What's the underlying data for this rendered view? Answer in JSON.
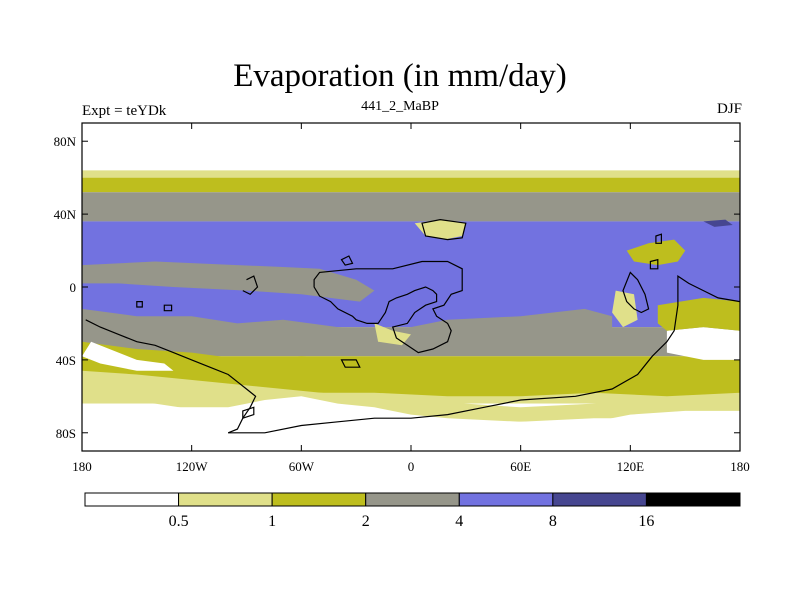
{
  "chart_data": {
    "type": "heatmap",
    "title": "Evaporation (in mm/day)",
    "left_subtitle": "Expt = teYDk",
    "center_subtitle": "441_2_MaBP",
    "right_subtitle": "DJF",
    "units": "mm/day",
    "xlim": [
      -180,
      180
    ],
    "ylim": [
      -90,
      90
    ],
    "x_ticks": [
      {
        "value": -180,
        "label": "180"
      },
      {
        "value": -120,
        "label": "120W"
      },
      {
        "value": -60,
        "label": "60W"
      },
      {
        "value": 0,
        "label": "0"
      },
      {
        "value": 60,
        "label": "60E"
      },
      {
        "value": 120,
        "label": "120E"
      },
      {
        "value": 180,
        "label": "180"
      }
    ],
    "y_ticks": [
      {
        "value": 80,
        "label": "80N"
      },
      {
        "value": 40,
        "label": "40N"
      },
      {
        "value": 0,
        "label": "0"
      },
      {
        "value": -40,
        "label": "40S"
      },
      {
        "value": -80,
        "label": "80S"
      }
    ],
    "levels": [
      0.5,
      1,
      2,
      4,
      8,
      16
    ],
    "level_labels": [
      "0.5",
      "1",
      "2",
      "4",
      "8",
      "16"
    ],
    "colors": [
      "#ffffff",
      "#e0e08a",
      "#bebe1e",
      "#96968a",
      "#7272e0",
      "#464690",
      "#000000"
    ],
    "colorbar_orientation": "horizontal-bottom",
    "zonal_bands": [
      {
        "lat_from": 90,
        "lat_to": 64,
        "class": 0
      },
      {
        "lat_from": 64,
        "lat_to": 60,
        "class": 1
      },
      {
        "lat_from": 60,
        "lat_to": 52,
        "class": 2
      },
      {
        "lat_from": 52,
        "lat_to": 36,
        "class": 3
      },
      {
        "lat_from": 36,
        "lat_to": -22,
        "class": 4
      },
      {
        "lat_from": -22,
        "lat_to": -38,
        "class": 3
      },
      {
        "lat_from": -38,
        "lat_to": -50,
        "class": 2
      },
      {
        "lat_from": -50,
        "lat_to": -64,
        "class": 1
      },
      {
        "lat_from": -64,
        "lat_to": -90,
        "class": 0
      }
    ],
    "regions": [
      {
        "name": "subtropical-north-gray",
        "class": 3,
        "points": [
          [
            -180,
            12
          ],
          [
            -140,
            14
          ],
          [
            -95,
            12
          ],
          [
            -70,
            11
          ],
          [
            -50,
            10
          ],
          [
            -30,
            4
          ],
          [
            -20,
            -2
          ],
          [
            -28,
            -8
          ],
          [
            -60,
            -4
          ],
          [
            -90,
            -2
          ],
          [
            -130,
            0
          ],
          [
            -160,
            2
          ],
          [
            -180,
            2
          ]
        ]
      },
      {
        "name": "south-pacific-gray",
        "class": 3,
        "points": [
          [
            -180,
            -12
          ],
          [
            -150,
            -16
          ],
          [
            -120,
            -16
          ],
          [
            -95,
            -20
          ],
          [
            -70,
            -18
          ],
          [
            -40,
            -22
          ],
          [
            -10,
            -24
          ],
          [
            20,
            -18
          ],
          [
            60,
            -16
          ],
          [
            95,
            -12
          ],
          [
            110,
            -16
          ],
          [
            110,
            -24
          ],
          [
            80,
            -30
          ],
          [
            40,
            -28
          ],
          [
            0,
            -32
          ],
          [
            -40,
            -30
          ],
          [
            -80,
            -30
          ],
          [
            -120,
            -28
          ],
          [
            -160,
            -24
          ],
          [
            -180,
            -24
          ]
        ]
      },
      {
        "name": "southern-olive-band",
        "class": 2,
        "points": [
          [
            -180,
            -30
          ],
          [
            -150,
            -34
          ],
          [
            -120,
            -36
          ],
          [
            -90,
            -40
          ],
          [
            -60,
            -38
          ],
          [
            -20,
            -40
          ],
          [
            10,
            -42
          ],
          [
            40,
            -42
          ],
          [
            70,
            -44
          ],
          [
            100,
            -44
          ],
          [
            130,
            -40
          ],
          [
            160,
            -42
          ],
          [
            180,
            -44
          ],
          [
            180,
            -58
          ],
          [
            140,
            -60
          ],
          [
            100,
            -58
          ],
          [
            60,
            -60
          ],
          [
            20,
            -60
          ],
          [
            -20,
            -58
          ],
          [
            -60,
            -58
          ],
          [
            -100,
            -54
          ],
          [
            -140,
            -50
          ],
          [
            -180,
            -48
          ]
        ]
      },
      {
        "name": "southern-cream-band",
        "class": 1,
        "points": [
          [
            -180,
            -46
          ],
          [
            -150,
            -48
          ],
          [
            -110,
            -52
          ],
          [
            -70,
            -56
          ],
          [
            -30,
            -60
          ],
          [
            0,
            -62
          ],
          [
            30,
            -64
          ],
          [
            60,
            -66
          ],
          [
            100,
            -64
          ],
          [
            140,
            -62
          ],
          [
            180,
            -60
          ],
          [
            180,
            -70
          ],
          [
            140,
            -72
          ],
          [
            100,
            -72
          ],
          [
            60,
            -74
          ],
          [
            20,
            -76
          ],
          [
            -20,
            -76
          ],
          [
            -60,
            -74
          ],
          [
            -100,
            -70
          ],
          [
            -140,
            -64
          ],
          [
            -180,
            -62
          ]
        ]
      },
      {
        "name": "antarctic-white",
        "class": 0,
        "points": [
          [
            -180,
            -64
          ],
          [
            -140,
            -66
          ],
          [
            -100,
            -66
          ],
          [
            -80,
            -62
          ],
          [
            -60,
            -60
          ],
          [
            -40,
            -64
          ],
          [
            -20,
            -66
          ],
          [
            0,
            -70
          ],
          [
            20,
            -72
          ],
          [
            60,
            -74
          ],
          [
            100,
            -74
          ],
          [
            120,
            -70
          ],
          [
            150,
            -68
          ],
          [
            180,
            -68
          ],
          [
            180,
            -90
          ],
          [
            -180,
            -90
          ]
        ]
      },
      {
        "name": "south-africa-white",
        "class": 0,
        "points": [
          [
            -175,
            -30
          ],
          [
            -165,
            -34
          ],
          [
            -150,
            -40
          ],
          [
            -135,
            -42
          ],
          [
            -130,
            -46
          ],
          [
            -150,
            -46
          ],
          [
            -170,
            -42
          ],
          [
            -180,
            -38
          ]
        ]
      },
      {
        "name": "east-white-patch",
        "class": 0,
        "points": [
          [
            140,
            -24
          ],
          [
            160,
            -22
          ],
          [
            180,
            -24
          ],
          [
            180,
            -40
          ],
          [
            160,
            -40
          ],
          [
            140,
            -36
          ]
        ]
      },
      {
        "name": "east-olive-ring",
        "class": 2,
        "points": [
          [
            135,
            -10
          ],
          [
            160,
            -6
          ],
          [
            180,
            -8
          ],
          [
            180,
            -24
          ],
          [
            160,
            -22
          ],
          [
            140,
            -24
          ],
          [
            135,
            -20
          ]
        ]
      },
      {
        "name": "north-olive-lobe",
        "class": 1,
        "points": [
          [
            2,
            35
          ],
          [
            18,
            37
          ],
          [
            30,
            35
          ],
          [
            28,
            28
          ],
          [
            18,
            26
          ],
          [
            8,
            28
          ]
        ]
      },
      {
        "name": "small-dark-patch",
        "class": 5,
        "points": [
          [
            160,
            36
          ],
          [
            172,
            37
          ],
          [
            176,
            34
          ],
          [
            166,
            33
          ]
        ]
      },
      {
        "name": "west-pacific-olive",
        "class": 2,
        "points": [
          [
            118,
            20
          ],
          [
            130,
            24
          ],
          [
            144,
            26
          ],
          [
            150,
            20
          ],
          [
            146,
            14
          ],
          [
            135,
            12
          ],
          [
            122,
            14
          ]
        ]
      },
      {
        "name": "subtropical-olive-atl",
        "class": 1,
        "points": [
          [
            -20,
            -20
          ],
          [
            -10,
            -24
          ],
          [
            0,
            -26
          ],
          [
            -5,
            -32
          ],
          [
            -18,
            -30
          ]
        ]
      },
      {
        "name": "indian-olive",
        "class": 1,
        "points": [
          [
            112,
            -2
          ],
          [
            122,
            -4
          ],
          [
            124,
            -18
          ],
          [
            116,
            -22
          ],
          [
            110,
            -14
          ]
        ]
      }
    ],
    "land_outlines": [
      {
        "name": "africa",
        "points": [
          [
            -53,
            0
          ],
          [
            -50,
            -5
          ],
          [
            -44,
            -8
          ],
          [
            -40,
            -12
          ],
          [
            -32,
            -16
          ],
          [
            -30,
            -18
          ],
          [
            -24,
            -20
          ],
          [
            -18,
            -20
          ],
          [
            -14,
            -14
          ],
          [
            -12,
            -8
          ],
          [
            -8,
            -6
          ],
          [
            -2,
            -4
          ],
          [
            2,
            -2
          ],
          [
            8,
            0
          ],
          [
            12,
            -2
          ],
          [
            14,
            -4
          ],
          [
            14,
            -8
          ],
          [
            8,
            -10
          ],
          [
            2,
            -14
          ],
          [
            -2,
            -20
          ],
          [
            -10,
            -22
          ],
          [
            -8,
            -28
          ],
          [
            -2,
            -32
          ],
          [
            4,
            -36
          ],
          [
            12,
            -34
          ],
          [
            20,
            -30
          ],
          [
            22,
            -24
          ],
          [
            20,
            -20
          ],
          [
            14,
            -16
          ],
          [
            12,
            -12
          ],
          [
            18,
            -10
          ],
          [
            22,
            -4
          ],
          [
            28,
            -2
          ],
          [
            28,
            10
          ],
          [
            20,
            14
          ],
          [
            6,
            14
          ],
          [
            -10,
            10
          ],
          [
            -30,
            10
          ],
          [
            -50,
            8
          ],
          [
            -53,
            4
          ]
        ]
      },
      {
        "name": "south-america-east-coast",
        "points": [
          [
            180,
            -8
          ],
          [
            168,
            -6
          ],
          [
            160,
            -2
          ],
          [
            152,
            2
          ],
          [
            146,
            6
          ],
          [
            146,
            -10
          ],
          [
            144,
            -24
          ],
          [
            140,
            -30
          ],
          [
            132,
            -38
          ],
          [
            124,
            -48
          ],
          [
            110,
            -56
          ],
          [
            90,
            -60
          ],
          [
            60,
            -62
          ],
          [
            40,
            -66
          ],
          [
            20,
            -70
          ],
          [
            0,
            -72
          ],
          [
            -20,
            -72
          ],
          [
            -40,
            -74
          ],
          [
            -60,
            -76
          ],
          [
            -80,
            -80
          ],
          [
            -100,
            -80
          ]
        ]
      },
      {
        "name": "south-america-west",
        "points": [
          [
            -100,
            -80
          ],
          [
            -95,
            -78
          ],
          [
            -92,
            -72
          ],
          [
            -88,
            -66
          ],
          [
            -85,
            -60
          ],
          [
            -90,
            -56
          ],
          [
            -95,
            -52
          ],
          [
            -100,
            -48
          ],
          [
            -110,
            -44
          ],
          [
            -120,
            -40
          ],
          [
            -130,
            -36
          ],
          [
            -140,
            -32
          ],
          [
            -150,
            -30
          ],
          [
            -160,
            -26
          ],
          [
            -170,
            -22
          ],
          [
            -178,
            -18
          ]
        ]
      },
      {
        "name": "australia-block",
        "points": [
          [
            120,
            8
          ],
          [
            124,
            4
          ],
          [
            128,
            -4
          ],
          [
            130,
            -12
          ],
          [
            126,
            -14
          ],
          [
            122,
            -12
          ],
          [
            118,
            -8
          ],
          [
            116,
            -2
          ]
        ]
      },
      {
        "name": "west-island",
        "points": [
          [
            -90,
            4
          ],
          [
            -86,
            6
          ],
          [
            -84,
            0
          ],
          [
            -88,
            -4
          ],
          [
            -92,
            -2
          ]
        ]
      },
      {
        "name": "north-island",
        "points": [
          [
            6,
            35
          ],
          [
            16,
            37
          ],
          [
            30,
            35
          ],
          [
            28,
            27
          ],
          [
            20,
            26
          ],
          [
            8,
            28
          ]
        ]
      },
      {
        "name": "small-island-1",
        "points": [
          [
            -38,
            15
          ],
          [
            -34,
            17
          ],
          [
            -32,
            13
          ],
          [
            -36,
            12
          ]
        ]
      },
      {
        "name": "small-island-2",
        "points": [
          [
            131,
            14
          ],
          [
            135,
            15
          ],
          [
            135,
            10
          ],
          [
            131,
            10
          ]
        ]
      },
      {
        "name": "small-island-3",
        "points": [
          [
            134,
            28
          ],
          [
            137,
            29
          ],
          [
            137,
            24
          ],
          [
            134,
            24
          ]
        ]
      },
      {
        "name": "south-atlantic-island",
        "points": [
          [
            -38,
            -40
          ],
          [
            -30,
            -40
          ],
          [
            -28,
            -44
          ],
          [
            -36,
            -44
          ]
        ]
      },
      {
        "name": "south-pacific-island",
        "points": [
          [
            -92,
            -68
          ],
          [
            -86,
            -66
          ],
          [
            -86,
            -70
          ],
          [
            -92,
            -72
          ]
        ]
      },
      {
        "name": "tiny-island-a",
        "points": [
          [
            -135,
            -10
          ],
          [
            -131,
            -10
          ],
          [
            -131,
            -13
          ],
          [
            -135,
            -13
          ]
        ]
      },
      {
        "name": "tiny-island-b",
        "points": [
          [
            -150,
            -8
          ],
          [
            -147,
            -8
          ],
          [
            -147,
            -11
          ],
          [
            -150,
            -11
          ]
        ]
      }
    ]
  }
}
